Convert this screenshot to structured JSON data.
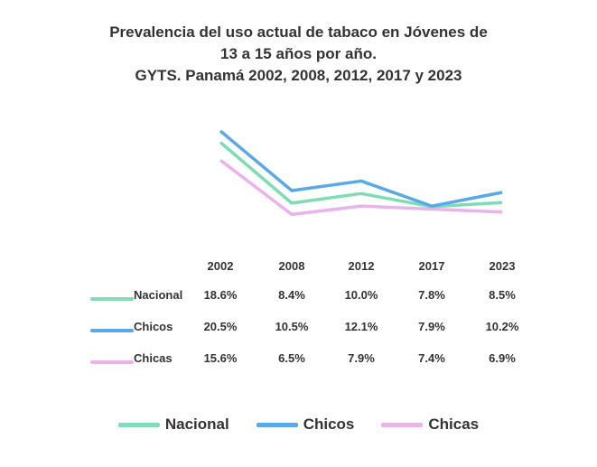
{
  "chart_data": {
    "type": "line",
    "title": [
      "Prevalencia del uso actual de tabaco en Jóvenes de",
      "13 a 15 años por año.",
      "GYTS. Panamá 2002, 2008, 2012, 2017 y 2023"
    ],
    "categories": [
      "2002",
      "2008",
      "2012",
      "2017",
      "2023"
    ],
    "series": [
      {
        "name": "Nacional",
        "color": "#7fdcb4",
        "values": [
          18.6,
          8.4,
          10.0,
          7.8,
          8.5
        ],
        "labels": [
          "18.6%",
          "8.4%",
          "10.0%",
          "7.8%",
          "8.5%"
        ]
      },
      {
        "name": "Chicos",
        "color": "#5aa9e6",
        "values": [
          20.5,
          10.5,
          12.1,
          7.9,
          10.2
        ],
        "labels": [
          "20.5%",
          "10.5%",
          "12.1%",
          "7.9%",
          "10.2%"
        ]
      },
      {
        "name": "Chicas",
        "color": "#eab3ea",
        "values": [
          15.6,
          6.5,
          7.9,
          7.4,
          6.9
        ],
        "labels": [
          "15.6%",
          "6.5%",
          "7.9%",
          "7.4%",
          "6.9%"
        ]
      }
    ],
    "legend_position": "bottom",
    "grid": false
  }
}
